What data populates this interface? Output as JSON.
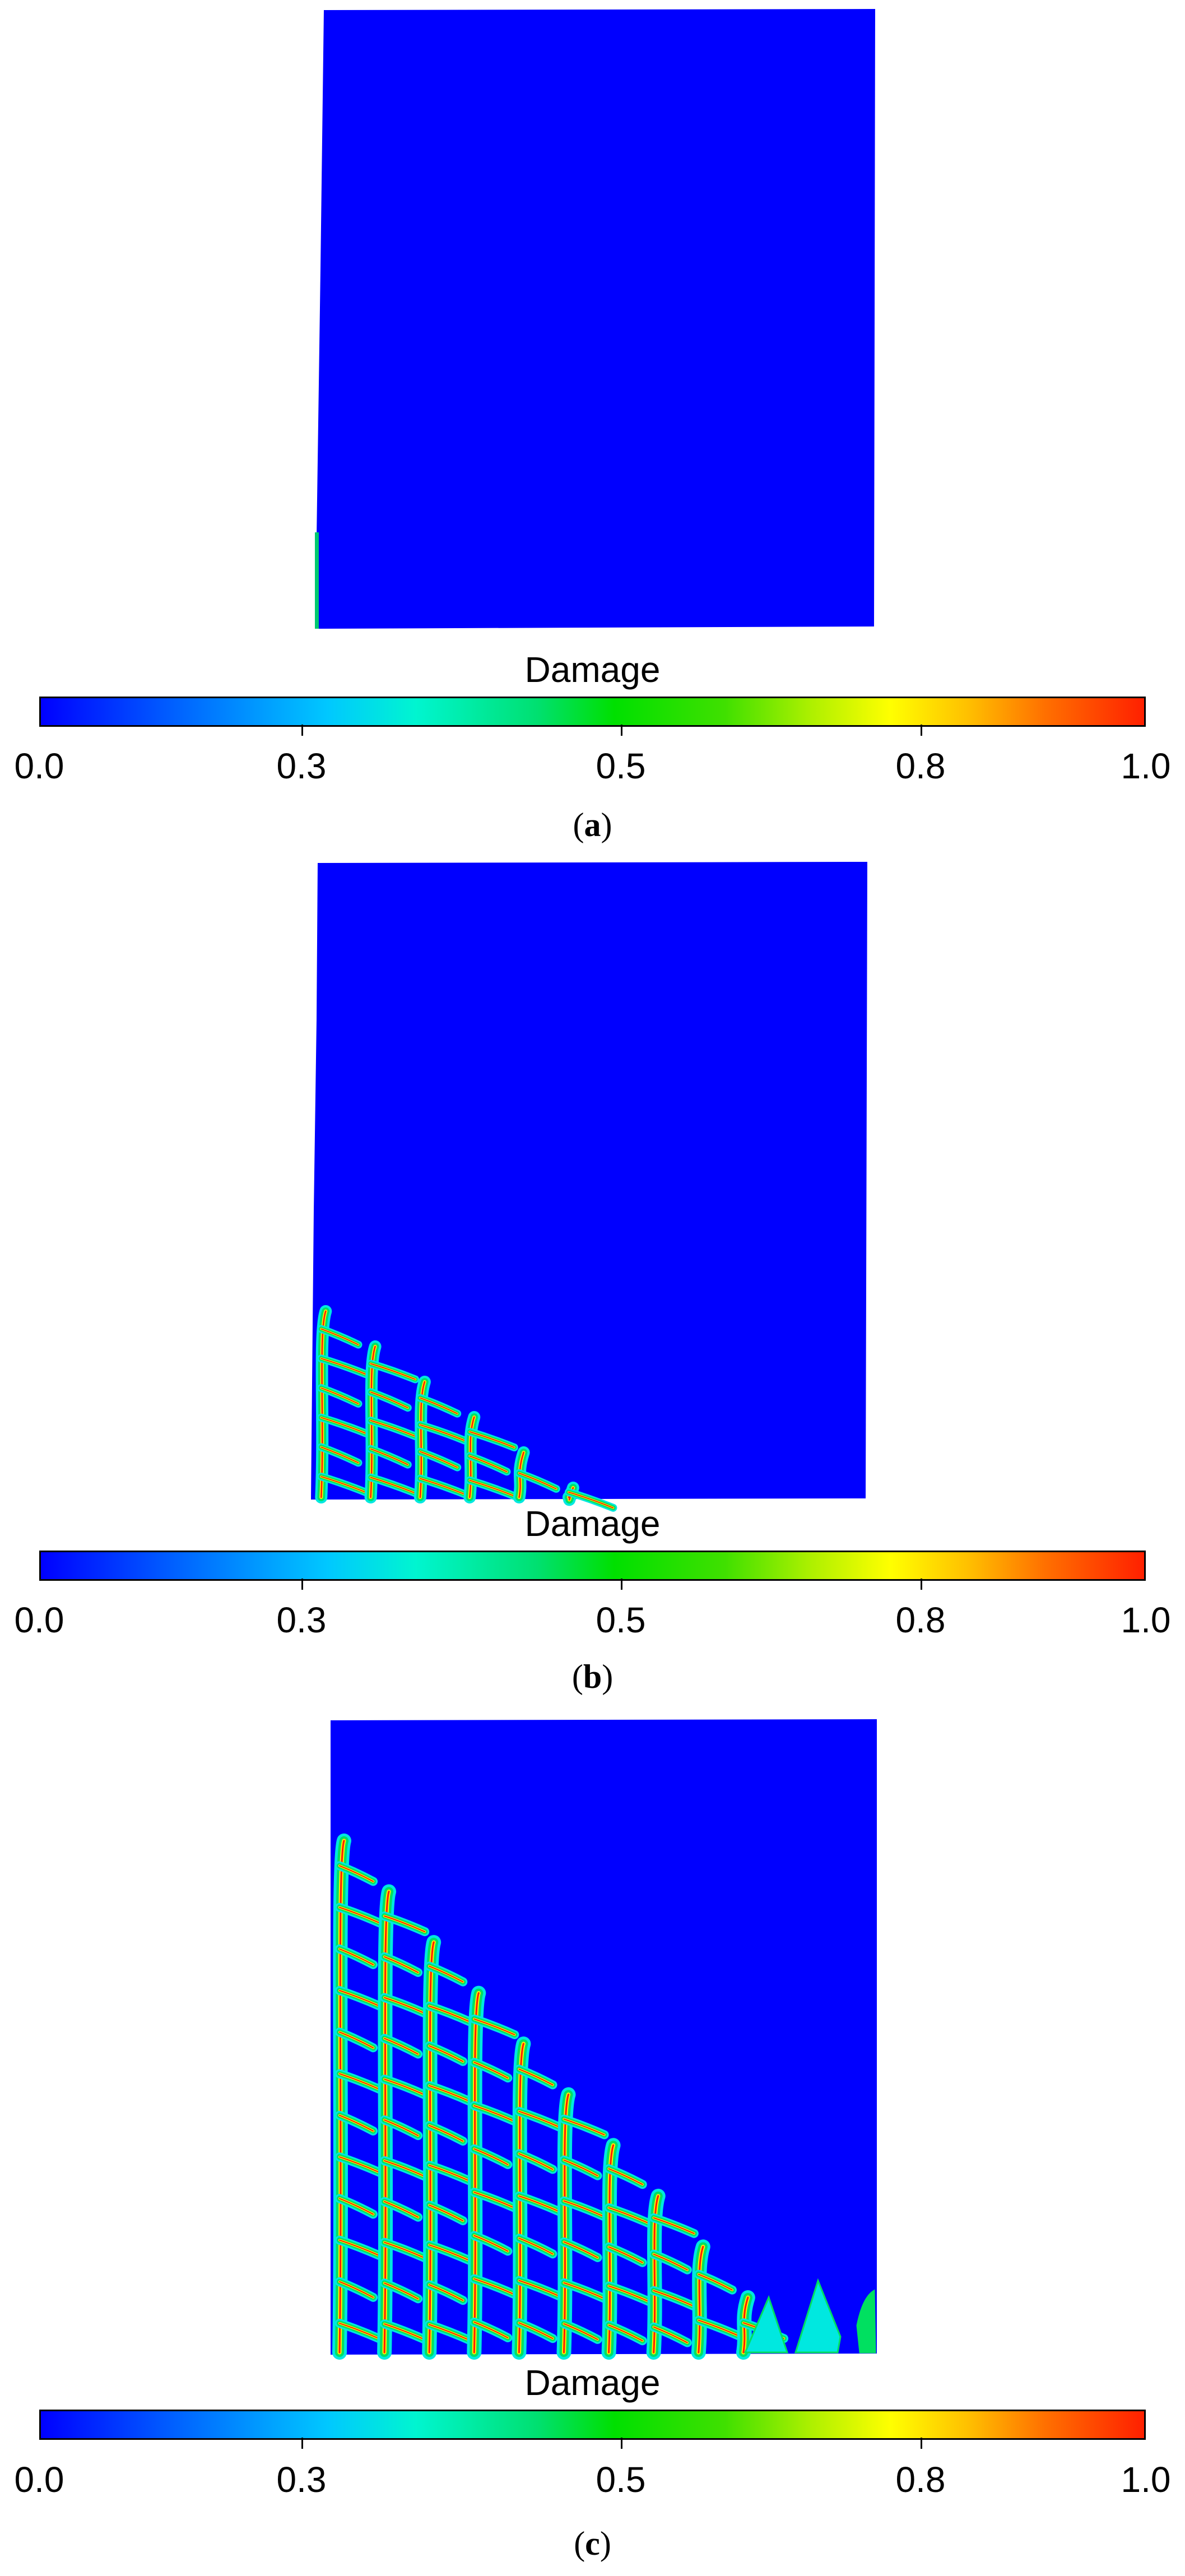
{
  "colorbar": {
    "title": "Damage",
    "ticks": [
      "0.0",
      "0.3",
      "0.5",
      "0.8",
      "1.0"
    ]
  },
  "panels": [
    {
      "letter": "a",
      "damaged_columns": 0,
      "damage_extent": "none"
    },
    {
      "letter": "b",
      "damaged_columns": 6,
      "damage_extent": "small corner region at lower-left"
    },
    {
      "letter": "c",
      "damaged_columns": 10,
      "damage_extent": "large triangular region at lower-left"
    }
  ],
  "colors": {
    "background": "#0000ff",
    "crack_mid": "#00e060",
    "crack_edge": "#00e8e0",
    "crack_high": "#ffee00",
    "crack_peak": "#ff2000"
  }
}
